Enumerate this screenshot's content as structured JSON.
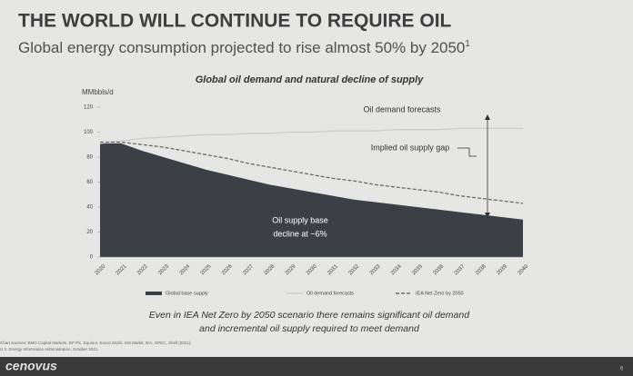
{
  "slide": {
    "title": "THE WORLD WILL CONTINUE TO REQUIRE OIL",
    "subtitle": "Global energy consumption projected to rise almost 50% by 2050",
    "subtitle_note": "1",
    "takeaway": [
      "Even in IEA Net Zero by 2050 scenario there remains significant oil demand",
      "and incremental oil supply required to meet demand"
    ],
    "sources": [
      "Chart sources: BMO Capital Markets, BP Plc, Equinor, Exxon Mobil, IHS Markit, IEA, OPEC, Shell (2021).",
      "U.S. Energy Information Administration, October 2021."
    ],
    "logo": "cenovus",
    "page": "6"
  },
  "chart_data": {
    "type": "area",
    "title": "Global oil demand and natural decline of supply",
    "y_label": "MMbbls/d",
    "categories": [
      "2020",
      "2021",
      "2022",
      "2023",
      "2024",
      "2025",
      "2026",
      "2027",
      "2028",
      "2029",
      "2030",
      "2031",
      "2032",
      "2033",
      "2034",
      "2035",
      "2036",
      "2037",
      "2038",
      "2039",
      "2040"
    ],
    "series": [
      {
        "name": "Global base supply",
        "color": "#3b4047",
        "style": "area",
        "values": [
          91,
          91,
          85,
          80,
          75,
          70,
          66,
          62,
          58,
          55,
          52,
          49,
          46,
          44,
          42,
          40,
          38,
          36,
          34,
          32,
          30
        ]
      },
      {
        "name": "Oil demand forecasts",
        "color": "#cfcfcf",
        "style": "line",
        "values": [
          91,
          93,
          95,
          96,
          97,
          98,
          98,
          99,
          99,
          100,
          100,
          101,
          101,
          101,
          102,
          102,
          102,
          103,
          103,
          103,
          103
        ]
      },
      {
        "name": "IEA Net Zero by 2050",
        "color": "#6a6a6a",
        "style": "dashed",
        "values": [
          92,
          92,
          90,
          88,
          85,
          82,
          79,
          75,
          72,
          69,
          66,
          63,
          61,
          58,
          56,
          54,
          52,
          49,
          47,
          45,
          43
        ]
      }
    ],
    "ylim": [
      0,
      120
    ],
    "yticks": [
      0,
      20,
      40,
      60,
      80,
      100,
      120
    ],
    "annotations": [
      "Oil demand forecasts",
      "Implied oil supply gap",
      "Oil supply base",
      "decline at ~6%"
    ]
  }
}
